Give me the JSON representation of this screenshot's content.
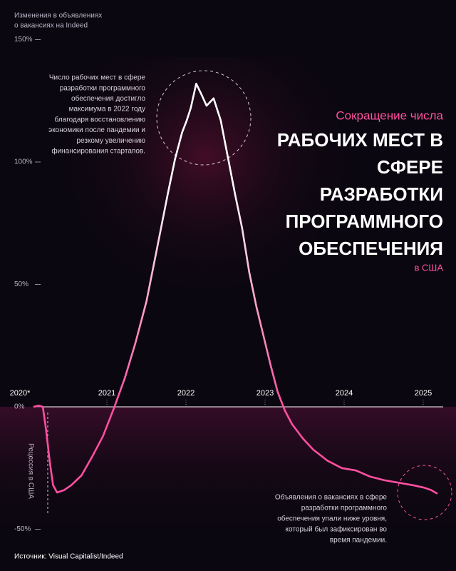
{
  "chart_data": {
    "type": "line",
    "y_label": [
      "Изменения в объявлениях",
      "о вакансиях на Indeed"
    ],
    "title_pre": "Сокращение числа",
    "title_lines": [
      "РАБОЧИХ МЕСТ В",
      "СФЕРЕ",
      "РАЗРАБОТКИ",
      "ПРОГРАММНОГО",
      "ОБЕСПЕЧЕНИЯ"
    ],
    "title_post": "в США",
    "annotation_peak": [
      "Число рабочих мест в сфере",
      "разработки программного",
      "обеспечения достигло",
      "максимума в 2022 году",
      "благодаря восстановлению",
      "экономики после пандемии и",
      "резкому увеличению",
      "финансирования стартапов."
    ],
    "annotation_end": [
      "Объявления о вакансиях в сфере",
      "разработки программного",
      "обеспечения упали ниже уровня,",
      "который был зафиксирован во",
      "время пандемии."
    ],
    "recession_label": "Рецессия в США",
    "source": "Источник: Visual Capitalist/Indeed",
    "xlim": [
      2020,
      2025.3
    ],
    "xticks": [
      {
        "value": 2020,
        "label": "2020*"
      },
      2021,
      2022,
      2023,
      2024,
      2025
    ],
    "ylim": [
      -50,
      150
    ],
    "yticks": [
      {
        "value": 150,
        "label": "150%"
      },
      {
        "value": 100,
        "label": "100%"
      },
      {
        "value": 50,
        "label": "50%"
      },
      {
        "value": 0,
        "label": "0%"
      },
      {
        "value": -50,
        "label": "-50%"
      }
    ],
    "color": "#ffffff",
    "gradient_color": "#ff4fa0",
    "series": [
      {
        "name": "Software development job postings",
        "x": [
          2020.07,
          2020.14,
          2020.19,
          2020.23,
          2020.28,
          2020.32,
          2020.37,
          2020.46,
          2020.55,
          2020.68,
          2020.82,
          2020.95,
          2021.09,
          2021.23,
          2021.36,
          2021.5,
          2021.63,
          2021.77,
          2021.86,
          2021.95,
          2022.01,
          2022.06,
          2022.13,
          2022.19,
          2022.26,
          2022.35,
          2022.44,
          2022.53,
          2022.62,
          2022.71,
          2022.8,
          2022.89,
          2022.98,
          2023.07,
          2023.16,
          2023.25,
          2023.34,
          2023.48,
          2023.61,
          2023.79,
          2023.97,
          2024.15,
          2024.33,
          2024.51,
          2024.69,
          2024.87,
          2025.01,
          2025.1,
          2025.18
        ],
        "values": [
          0,
          0.5,
          0,
          -9,
          -23,
          -32,
          -35,
          -34,
          -32,
          -28,
          -20,
          -12,
          -0.5,
          12,
          26,
          43,
          64,
          87,
          101,
          112,
          117,
          122,
          132,
          128,
          123,
          126,
          117,
          102,
          87,
          73,
          55,
          41,
          29,
          17,
          6,
          -1.5,
          -7,
          -13,
          -17.5,
          -22,
          -25,
          -26,
          -28.5,
          -30,
          -31,
          -32,
          -33,
          -34,
          -35.5
        ]
      }
    ]
  }
}
